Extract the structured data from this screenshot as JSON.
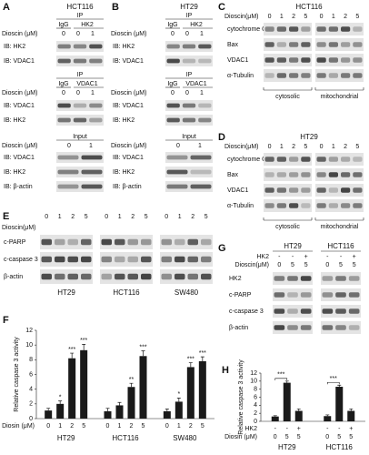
{
  "A": {
    "label": "A",
    "cell_line": "HCT116",
    "ip1": {
      "header": "IP",
      "lanes": [
        "IgG",
        "HK2"
      ],
      "dose_label": "Dioscin (μM)",
      "doses": [
        0,
        0,
        1
      ],
      "blots": [
        "IB: HK2",
        "IB: VDAC1"
      ]
    },
    "ip2": {
      "header": "IP",
      "lanes": [
        "IgG",
        "VDAC1"
      ],
      "dose_label": "Dioscin (μM)",
      "doses": [
        0,
        0,
        1
      ],
      "blots": [
        "IB: VDAC1",
        "IB: HK2"
      ]
    },
    "input": {
      "header": "Input",
      "dose_label": "Dioscin (μM)",
      "doses": [
        0,
        1
      ],
      "blots": [
        "IB: VDAC1",
        "IB: HK2",
        "IB: β-actin"
      ]
    }
  },
  "B": {
    "label": "B",
    "cell_line": "HT29",
    "ip1": {
      "header": "IP",
      "lanes": [
        "IgG",
        "HK2"
      ],
      "dose_label": "Dioscin (μM)",
      "doses": [
        0,
        0,
        1
      ],
      "blots": [
        "IB: HK2",
        "IB: VDAC1"
      ]
    },
    "ip2": {
      "header": "IP",
      "lanes": [
        "IgG",
        "VDAC1"
      ],
      "dose_label": "Dioscin (μM)",
      "doses": [
        0,
        0,
        1
      ],
      "blots": [
        "IB: VDAC1",
        "IB: HK2"
      ]
    },
    "input": {
      "header": "Input",
      "dose_label": "Dioscin (μM)",
      "doses": [
        0,
        1
      ],
      "blots": [
        "IB: VDAC1",
        "IB: HK2",
        "IB: β-actin"
      ]
    }
  },
  "C": {
    "label": "C",
    "cell_line": "HCT116",
    "dose_label": "Dioscin(μM)",
    "doses": [
      0,
      1,
      2,
      5,
      0,
      1,
      2,
      5
    ],
    "blots": [
      "cytochrome C",
      "Bax",
      "VDAC1",
      "α-Tubulin"
    ],
    "fractions": [
      "cytosolic",
      "mitochondrial"
    ]
  },
  "D": {
    "label": "D",
    "cell_line": "HT29",
    "dose_label": "Dioscin(μM)",
    "doses": [
      0,
      1,
      2,
      5,
      0,
      1,
      2,
      5
    ],
    "blots": [
      "cytochrome C",
      "Bax",
      "VDAC1",
      "α-Tubulin"
    ],
    "fractions": [
      "cytosolic",
      "mitochondrial"
    ]
  },
  "E": {
    "label": "E",
    "dose_label": "Dioscin(μM)",
    "doses": [
      0,
      1,
      2,
      5,
      0,
      1,
      2,
      5,
      0,
      1,
      2,
      5
    ],
    "blots": [
      "c-PARP",
      "c-caspase 3",
      "β-actin"
    ],
    "cell_lines": [
      "HT29",
      "HCT116",
      "SW480"
    ]
  },
  "G": {
    "label": "G",
    "cell_lines": [
      "HT29",
      "HCT116"
    ],
    "hk2_label": "HK2",
    "hk2": [
      "-",
      "-",
      "+",
      "-",
      "-",
      "+"
    ],
    "dose_label": "Dioscin(μM)",
    "doses": [
      0,
      5,
      5,
      0,
      5,
      5
    ],
    "blots": [
      "HK2",
      "c-PARP",
      "c-caspase 3",
      "β-actin"
    ]
  },
  "chart_data": [
    {
      "type": "bar",
      "panel": "F",
      "ylabel": "Relative caspase 3 activity",
      "xlabel": "Diosin (μM)",
      "groups": [
        "HT29",
        "HCT116",
        "SW480"
      ],
      "categories": [
        "0",
        "1",
        "2",
        "5",
        "0",
        "1",
        "2",
        "5",
        "0",
        "1",
        "2",
        "5"
      ],
      "values": [
        1.1,
        2.0,
        8.2,
        9.3,
        1.0,
        1.8,
        4.3,
        8.5,
        1.0,
        2.3,
        7.0,
        7.8
      ],
      "errors": [
        0.3,
        0.4,
        0.7,
        0.8,
        0.4,
        0.4,
        0.5,
        0.7,
        0.3,
        0.5,
        0.6,
        0.6
      ],
      "significance": [
        null,
        "*",
        "***",
        "***",
        null,
        null,
        "**",
        "***",
        null,
        "*",
        "***",
        "***"
      ],
      "color": "#1a1a1a",
      "ylim": [
        0,
        12
      ],
      "yticks": [
        0,
        2,
        4,
        6,
        8,
        10,
        12
      ]
    },
    {
      "type": "bar",
      "panel": "H",
      "ylabel": "Relative caspase 3 activity",
      "xlabel": "Diosin (μM)",
      "hk2_label": "HK2",
      "groups": [
        "HT29",
        "HCT116"
      ],
      "hk2": [
        "-",
        "-",
        "+",
        "-",
        "-",
        "+"
      ],
      "categories": [
        "0",
        "5",
        "5",
        "0",
        "5",
        "5"
      ],
      "values": [
        1.2,
        9.6,
        2.6,
        1.3,
        8.6,
        2.6
      ],
      "errors": [
        0.2,
        0.4,
        0.5,
        0.3,
        0.4,
        0.5
      ],
      "significance": [
        "***",
        "***"
      ],
      "color": "#1a1a1a",
      "ylim": [
        0,
        12
      ],
      "yticks": [
        0,
        2,
        4,
        6,
        8,
        10,
        12
      ]
    }
  ]
}
